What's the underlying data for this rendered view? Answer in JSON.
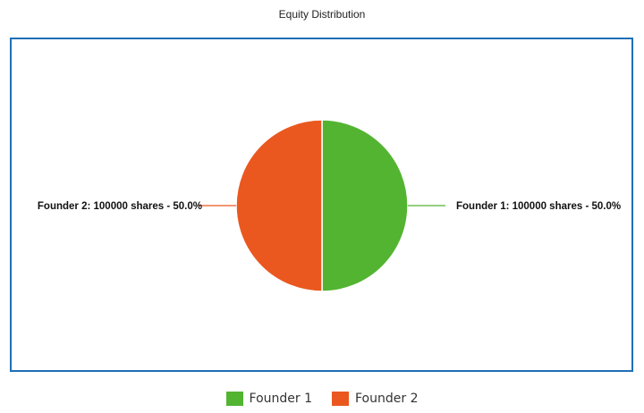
{
  "chart_data": {
    "type": "pie",
    "title": "Equity Distribution",
    "slices": [
      {
        "name": "Founder 1",
        "value": 100000,
        "percent": 50.0,
        "color": "#53b432",
        "label": "Founder 1: 100000 shares - 50.0%"
      },
      {
        "name": "Founder 2",
        "value": 100000,
        "percent": 50.0,
        "color": "#ea581f",
        "label": "Founder 2: 100000 shares - 50.0%"
      }
    ],
    "legend": {
      "position": "bottom",
      "items": [
        "Founder 1",
        "Founder 2"
      ]
    },
    "frame_color": "#1f6fb5"
  }
}
